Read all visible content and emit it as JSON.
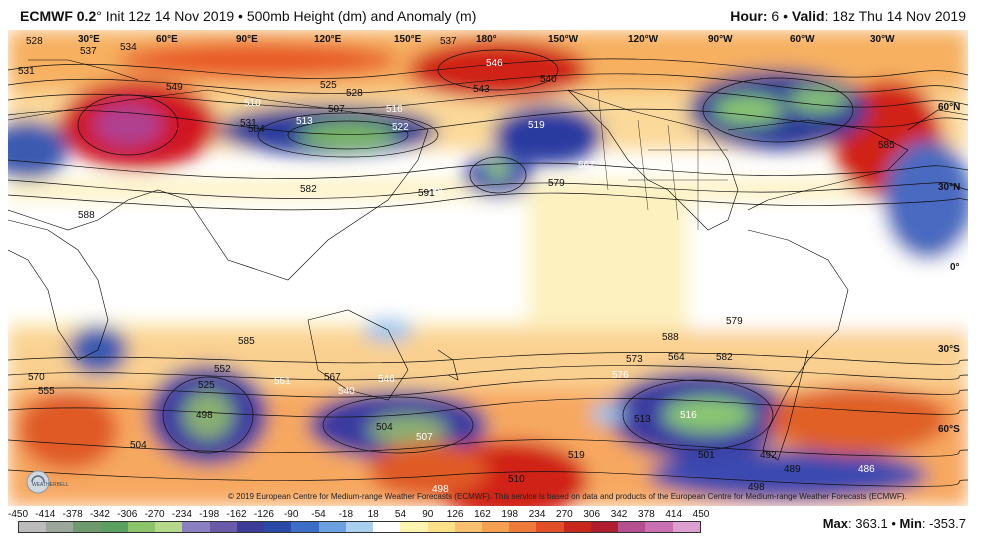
{
  "header": {
    "model": "ECMWF 0.2",
    "degree_mark": "°",
    "title_rest": " Init 12z 14 Nov 2019 • 500mb Height (dm) and Anomaly (m)",
    "hour_label": "Hour:",
    "hour_value": " 6 • ",
    "valid_label": "Valid",
    "valid_value": ": 18z Thu 14 Nov 2019"
  },
  "map": {
    "lon_labels": [
      "30°E",
      "60°E",
      "90°E",
      "120°E",
      "150°E",
      "180°",
      "150°W",
      "120°W",
      "90°W",
      "60°W",
      "30°W"
    ],
    "lat_labels": [
      "60°N",
      "30°N",
      "0°",
      "30°S",
      "60°S"
    ],
    "contour_labels": [
      "528",
      "537",
      "534",
      "531",
      "537",
      "546",
      "543",
      "540",
      "519",
      "510",
      "549",
      "513",
      "507",
      "525",
      "528",
      "516",
      "504",
      "531",
      "522",
      "570",
      "585",
      "588",
      "588",
      "579",
      "567",
      "582",
      "585",
      "591",
      "588",
      "579",
      "564",
      "576",
      "582",
      "573",
      "552",
      "525",
      "561",
      "567",
      "540",
      "546",
      "498",
      "504",
      "507",
      "516",
      "513",
      "510",
      "519",
      "555",
      "504",
      "492",
      "489",
      "486",
      "498",
      "498",
      "501"
    ],
    "credit": "© 2019 European Centre for Medium-range Weather Forecasts (ECMWF). This service is based on data and products of the European Centre for Medium-range Weather Forecasts (ECMWF)."
  },
  "colorbar": {
    "ticks": [
      "-450",
      "-414",
      "-378",
      "-342",
      "-306",
      "-270",
      "-234",
      "-198",
      "-162",
      "-126",
      "-90",
      "-54",
      "-18",
      "18",
      "54",
      "90",
      "126",
      "162",
      "198",
      "234",
      "270",
      "306",
      "342",
      "378",
      "414",
      "450"
    ],
    "colors": [
      "#bcbcbc",
      "#9aa79a",
      "#6e9a6e",
      "#5aa060",
      "#8cc46a",
      "#b6d88a",
      "#8a7fc0",
      "#6a5aa8",
      "#3c3c96",
      "#2a4aa8",
      "#3c6ec8",
      "#6aa0e0",
      "#aad0f0",
      "#ffffff",
      "#fff4b0",
      "#fde08a",
      "#f8c070",
      "#f4a050",
      "#ee7a3c",
      "#e2502a",
      "#c8281c",
      "#b01c30",
      "#b45090",
      "#c870b0",
      "#dca0d0"
    ],
    "max_label": "Max",
    "max_value": ": 363.1 • ",
    "min_label": "Min",
    "min_value": ": -353.7"
  },
  "logo": {
    "text": "WEATHERBELL"
  }
}
